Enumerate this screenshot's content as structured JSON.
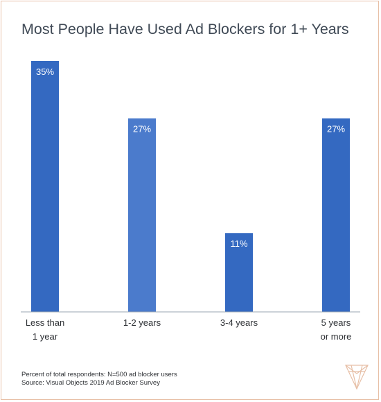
{
  "title": "Most People Have Used Ad Blockers for 1+ Years",
  "footnotes": {
    "line1": "Percent of total respondents: N=500 ad blocker users",
    "line2": "Source: Visual Objects 2019 Ad Blocker Survey"
  },
  "logo": {
    "icon": "visual-objects-logo-icon",
    "color": "#e7bfa6"
  },
  "colors": {
    "bar_primary": "#3469c1",
    "bar_secondary": "#4b7bcc",
    "axis": "#9aa6b2"
  },
  "chart_data": {
    "type": "bar",
    "categories": [
      [
        "Less than",
        "1 year"
      ],
      [
        "1-2 years"
      ],
      [
        "3-4 years"
      ],
      [
        "5 years",
        "or more"
      ]
    ],
    "values": [
      35,
      27,
      11,
      27
    ],
    "labels": [
      "35%",
      "27%",
      "11%",
      "27%"
    ],
    "bar_colors": [
      "#3469c1",
      "#4b7bcc",
      "#3469c1",
      "#3469c1"
    ],
    "ylim": [
      0,
      35
    ],
    "grid": false,
    "legend": "none"
  }
}
